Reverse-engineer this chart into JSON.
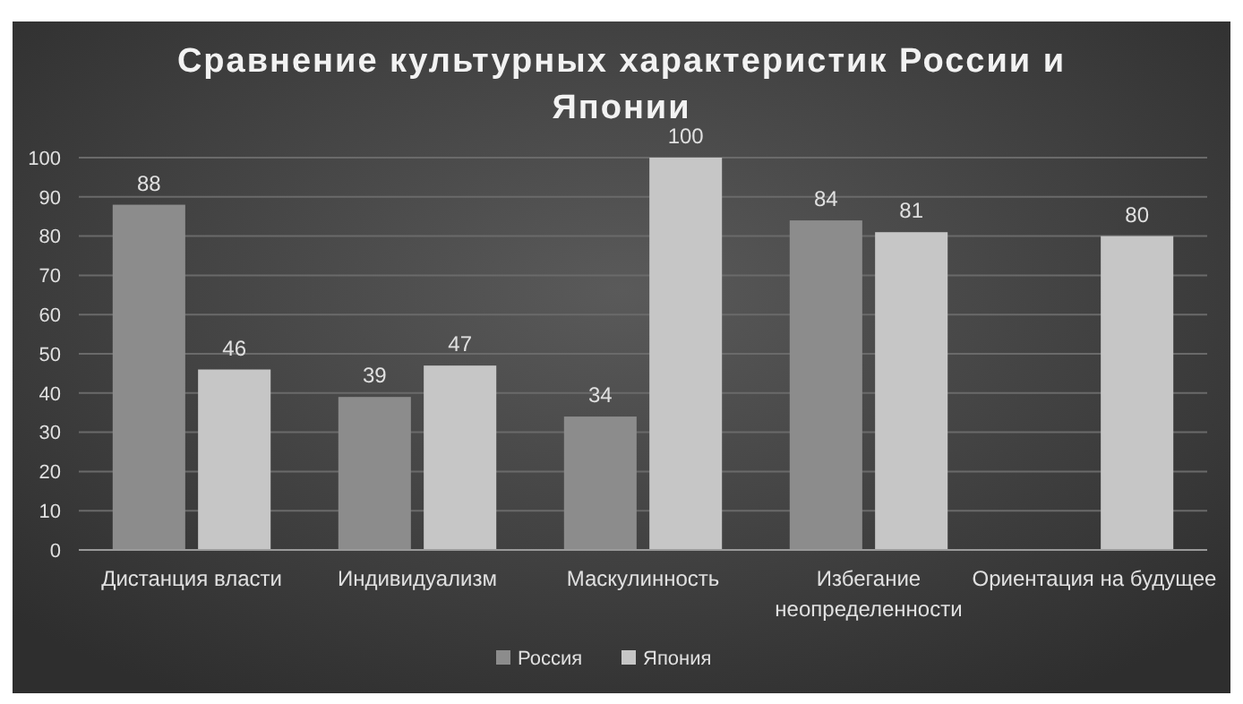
{
  "chart_data": {
    "type": "bar",
    "title": "Сравнение культурных характеристик России и Японии",
    "categories": [
      "Дистанция власти",
      "Индивидуализм",
      "Маскулинность",
      "Избегание неопределенности",
      "Ориентация на будущее"
    ],
    "series": [
      {
        "name": "Россия",
        "color": "#8c8c8c",
        "values": [
          88,
          39,
          34,
          84,
          null
        ]
      },
      {
        "name": "Япония",
        "color": "#c6c6c6",
        "values": [
          46,
          47,
          100,
          81,
          80
        ]
      }
    ],
    "ylim": [
      0,
      100
    ],
    "yticks": [
      0,
      10,
      20,
      30,
      40,
      50,
      60,
      70,
      80,
      90,
      100
    ],
    "grid": "y",
    "legend": "bottom",
    "data_labels": true
  }
}
